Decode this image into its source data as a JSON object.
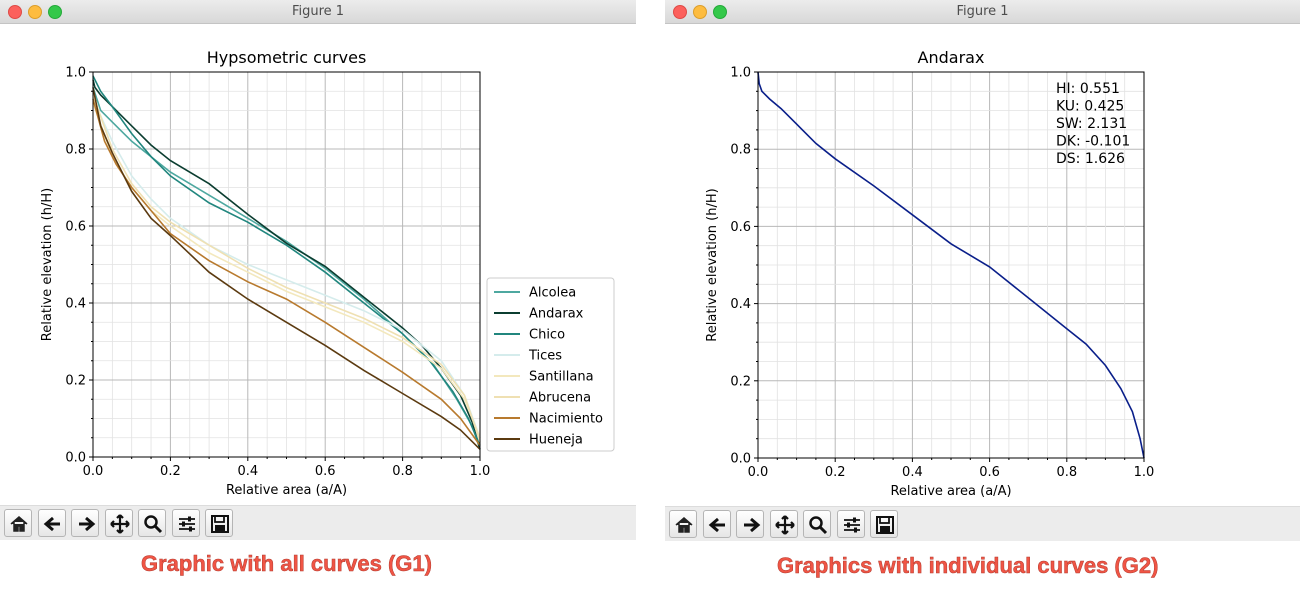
{
  "windows": [
    {
      "title": "Figure 1"
    },
    {
      "title": "Figure 1"
    }
  ],
  "toolbar_icons": [
    "home-icon",
    "back-arrow-icon",
    "forward-arrow-icon",
    "pan-icon",
    "zoom-icon",
    "configure-subplots-icon",
    "save-icon"
  ],
  "captions": {
    "g1": "Graphic with all curves (G1)",
    "g2": "Graphics with individual curves (G2)"
  },
  "chart_data": [
    {
      "type": "line",
      "title": "Hypsometric curves",
      "xlabel": "Relative area (a/A)",
      "ylabel": "Relative elevation (h/H)",
      "xlim": [
        0,
        1
      ],
      "ylim": [
        0,
        1
      ],
      "x_ticks": [
        "0.0",
        "0.2",
        "0.4",
        "0.6",
        "0.8",
        "1.0"
      ],
      "y_ticks": [
        "0.0",
        "0.2",
        "0.4",
        "0.6",
        "0.8",
        "1.0"
      ],
      "grid": true,
      "legend_position": "right-outside",
      "series": [
        {
          "name": "Alcolea",
          "color": "#4ea8a0",
          "points": [
            [
              0,
              0.96
            ],
            [
              0.02,
              0.9
            ],
            [
              0.05,
              0.87
            ],
            [
              0.1,
              0.82
            ],
            [
              0.15,
              0.78
            ],
            [
              0.2,
              0.74
            ],
            [
              0.3,
              0.68
            ],
            [
              0.4,
              0.62
            ],
            [
              0.5,
              0.56
            ],
            [
              0.6,
              0.49
            ],
            [
              0.7,
              0.41
            ],
            [
              0.8,
              0.32
            ],
            [
              0.88,
              0.24
            ],
            [
              0.94,
              0.15
            ],
            [
              0.98,
              0.08
            ],
            [
              1,
              0.02
            ]
          ]
        },
        {
          "name": "Andarax",
          "color": "#0b3d30",
          "points": [
            [
              0,
              0.98
            ],
            [
              0.005,
              0.96
            ],
            [
              0.02,
              0.94
            ],
            [
              0.05,
              0.91
            ],
            [
              0.1,
              0.86
            ],
            [
              0.15,
              0.81
            ],
            [
              0.2,
              0.77
            ],
            [
              0.3,
              0.71
            ],
            [
              0.4,
              0.63
            ],
            [
              0.5,
              0.555
            ],
            [
              0.6,
              0.495
            ],
            [
              0.7,
              0.415
            ],
            [
              0.8,
              0.335
            ],
            [
              0.85,
              0.29
            ],
            [
              0.9,
              0.23
            ],
            [
              0.95,
              0.16
            ],
            [
              0.98,
              0.09
            ],
            [
              1,
              0.02
            ]
          ]
        },
        {
          "name": "Chico",
          "color": "#21867e",
          "points": [
            [
              0,
              0.99
            ],
            [
              0.02,
              0.95
            ],
            [
              0.05,
              0.91
            ],
            [
              0.1,
              0.84
            ],
            [
              0.15,
              0.78
            ],
            [
              0.2,
              0.73
            ],
            [
              0.3,
              0.66
            ],
            [
              0.4,
              0.61
            ],
            [
              0.5,
              0.55
            ],
            [
              0.6,
              0.48
            ],
            [
              0.7,
              0.4
            ],
            [
              0.8,
              0.32
            ],
            [
              0.87,
              0.25
            ],
            [
              0.93,
              0.17
            ],
            [
              0.97,
              0.1
            ],
            [
              1,
              0.03
            ]
          ]
        },
        {
          "name": "Tices",
          "color": "#d5ecec",
          "points": [
            [
              0,
              0.93
            ],
            [
              0.05,
              0.82
            ],
            [
              0.1,
              0.73
            ],
            [
              0.15,
              0.67
            ],
            [
              0.2,
              0.62
            ],
            [
              0.3,
              0.55
            ],
            [
              0.4,
              0.5
            ],
            [
              0.5,
              0.46
            ],
            [
              0.6,
              0.42
            ],
            [
              0.7,
              0.38
            ],
            [
              0.8,
              0.33
            ],
            [
              0.9,
              0.25
            ],
            [
              0.96,
              0.16
            ],
            [
              1,
              0.05
            ]
          ]
        },
        {
          "name": "Santillana",
          "color": "#f3e8bd",
          "points": [
            [
              0,
              0.92
            ],
            [
              0.05,
              0.78
            ],
            [
              0.1,
              0.7
            ],
            [
              0.15,
              0.64
            ],
            [
              0.2,
              0.6
            ],
            [
              0.3,
              0.53
            ],
            [
              0.4,
              0.48
            ],
            [
              0.5,
              0.43
            ],
            [
              0.6,
              0.39
            ],
            [
              0.7,
              0.35
            ],
            [
              0.8,
              0.3
            ],
            [
              0.9,
              0.23
            ],
            [
              0.96,
              0.15
            ],
            [
              1,
              0.05
            ]
          ]
        },
        {
          "name": "Abrucena",
          "color": "#efe0b2",
          "points": [
            [
              0,
              0.94
            ],
            [
              0.05,
              0.8
            ],
            [
              0.1,
              0.71
            ],
            [
              0.15,
              0.65
            ],
            [
              0.2,
              0.61
            ],
            [
              0.3,
              0.55
            ],
            [
              0.4,
              0.49
            ],
            [
              0.5,
              0.44
            ],
            [
              0.6,
              0.4
            ],
            [
              0.7,
              0.36
            ],
            [
              0.8,
              0.31
            ],
            [
              0.9,
              0.24
            ],
            [
              0.96,
              0.16
            ],
            [
              1,
              0.04
            ]
          ]
        },
        {
          "name": "Nacimiento",
          "color": "#b87a2e",
          "points": [
            [
              0,
              0.93
            ],
            [
              0.03,
              0.82
            ],
            [
              0.06,
              0.76
            ],
            [
              0.1,
              0.7
            ],
            [
              0.15,
              0.64
            ],
            [
              0.2,
              0.58
            ],
            [
              0.3,
              0.51
            ],
            [
              0.4,
              0.455
            ],
            [
              0.5,
              0.41
            ],
            [
              0.6,
              0.35
            ],
            [
              0.7,
              0.285
            ],
            [
              0.8,
              0.22
            ],
            [
              0.9,
              0.15
            ],
            [
              0.95,
              0.1
            ],
            [
              1,
              0.03
            ]
          ]
        },
        {
          "name": "Hueneja",
          "color": "#5b3a10",
          "points": [
            [
              0,
              0.96
            ],
            [
              0.02,
              0.86
            ],
            [
              0.05,
              0.79
            ],
            [
              0.1,
              0.69
            ],
            [
              0.15,
              0.62
            ],
            [
              0.2,
              0.575
            ],
            [
              0.3,
              0.48
            ],
            [
              0.4,
              0.41
            ],
            [
              0.5,
              0.35
            ],
            [
              0.6,
              0.29
            ],
            [
              0.7,
              0.225
            ],
            [
              0.8,
              0.165
            ],
            [
              0.9,
              0.105
            ],
            [
              0.95,
              0.07
            ],
            [
              1,
              0.02
            ]
          ]
        }
      ]
    },
    {
      "type": "line",
      "title": "Andarax",
      "xlabel": "Relative area (a/A)",
      "ylabel": "Relative elevation (h/H)",
      "xlim": [
        0,
        1
      ],
      "ylim": [
        0,
        1
      ],
      "x_ticks": [
        "0.0",
        "0.2",
        "0.4",
        "0.6",
        "0.8",
        "1.0"
      ],
      "y_ticks": [
        "0.0",
        "0.2",
        "0.4",
        "0.6",
        "0.8",
        "1.0"
      ],
      "grid": true,
      "annotations": [
        "HI: 0.551",
        "KU: 0.425",
        "SW: 2.131",
        "DK: -0.101",
        "DS: 1.626"
      ],
      "series": [
        {
          "name": "",
          "color": "#0a1f8a",
          "points": [
            [
              0,
              1.0
            ],
            [
              0.003,
              0.97
            ],
            [
              0.01,
              0.95
            ],
            [
              0.03,
              0.93
            ],
            [
              0.06,
              0.905
            ],
            [
              0.1,
              0.865
            ],
            [
              0.15,
              0.815
            ],
            [
              0.2,
              0.775
            ],
            [
              0.3,
              0.705
            ],
            [
              0.4,
              0.63
            ],
            [
              0.5,
              0.555
            ],
            [
              0.6,
              0.495
            ],
            [
              0.7,
              0.415
            ],
            [
              0.8,
              0.335
            ],
            [
              0.85,
              0.295
            ],
            [
              0.9,
              0.24
            ],
            [
              0.94,
              0.18
            ],
            [
              0.97,
              0.12
            ],
            [
              0.99,
              0.05
            ],
            [
              1,
              0.0
            ]
          ]
        }
      ]
    }
  ]
}
